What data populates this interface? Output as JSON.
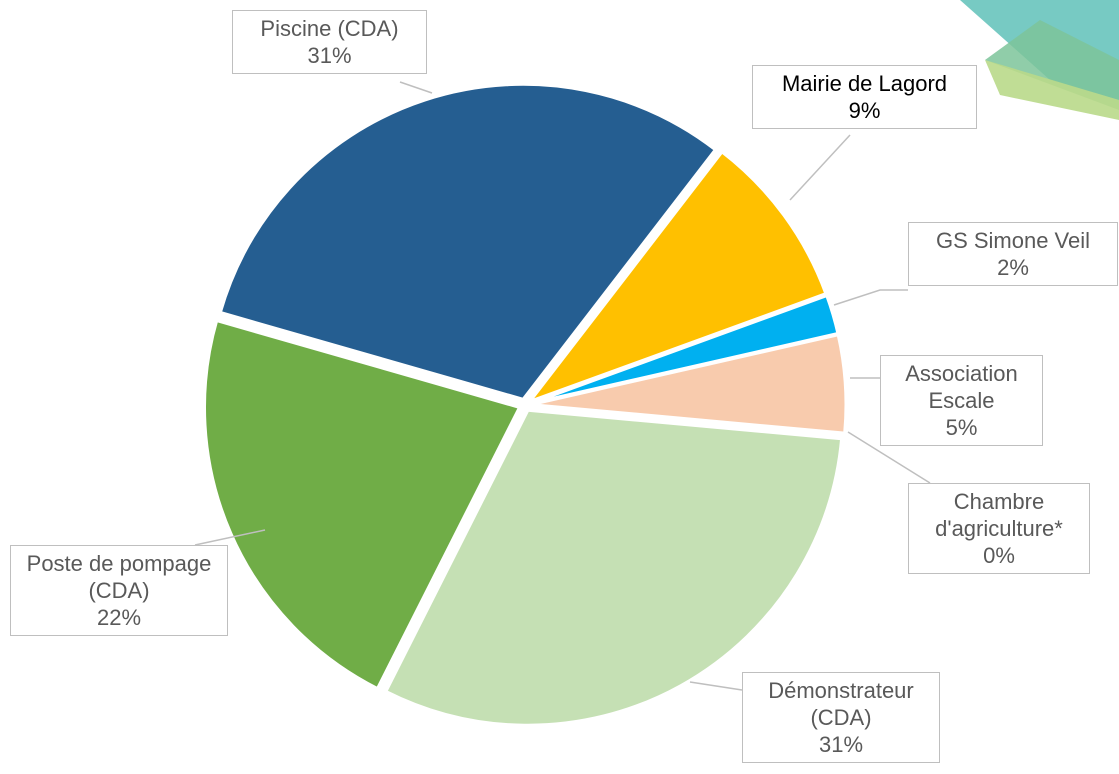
{
  "chart_data": {
    "type": "pie",
    "categories": [
      "Piscine (CDA)",
      "Mairie de Lagord",
      "GS Simone Veil",
      "Association Escale",
      "Chambre d'agriculture*",
      "Démonstrateur (CDA)",
      "Poste de pompage (CDA)"
    ],
    "values": [
      31,
      9,
      2,
      5,
      0,
      31,
      22
    ],
    "value_labels": [
      "31%",
      "9%",
      "2%",
      "5%",
      "0%",
      "31%",
      "22%"
    ],
    "colors": [
      "#255e91",
      "#ffc000",
      "#00b0f0",
      "#f8cbad",
      "#a5a5a5",
      "#c5e0b4",
      "#70ad47"
    ]
  }
}
